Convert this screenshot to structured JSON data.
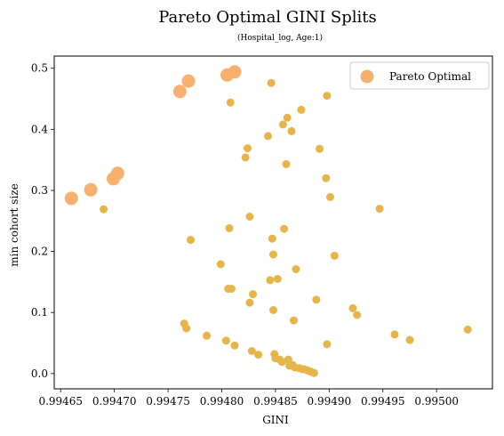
{
  "chart_data": {
    "type": "scatter",
    "title": "Pareto Optimal GINI Splits",
    "subtitle": "(Hospital_log, Age:1)",
    "xlabel": "GINI",
    "ylabel": "min cohort size",
    "xlim": [
      0.99645,
      0.99505
    ],
    "ylim": [
      -0.025,
      0.52
    ],
    "x_ticks": [
      0.99465,
      0.9947,
      0.99475,
      0.9948,
      0.99485,
      0.9949,
      0.99495,
      0.995
    ],
    "x_tick_labels": [
      "0.99465",
      "0.99470",
      "0.99475",
      "0.99480",
      "0.99485",
      "0.99490",
      "0.99495",
      "0.99500"
    ],
    "y_ticks": [
      0.0,
      0.1,
      0.2,
      0.3,
      0.4,
      0.5
    ],
    "y_tick_labels": [
      "0.0",
      "0.1",
      "0.2",
      "0.3",
      "0.4",
      "0.5"
    ],
    "grid": false,
    "legend_position": "top-right",
    "legend_label": "Pareto Optimal",
    "colors": {
      "pareto": "#F8B06E",
      "other": "#E6B54A"
    },
    "series": [
      {
        "name": "",
        "points": [
          [
            0.99469,
            0.269
          ],
          [
            0.994765,
            0.082
          ],
          [
            0.994767,
            0.074
          ],
          [
            0.994771,
            0.219
          ],
          [
            0.994786,
            0.062
          ],
          [
            0.994799,
            0.179
          ],
          [
            0.994804,
            0.054
          ],
          [
            0.994806,
            0.139
          ],
          [
            0.994807,
            0.238
          ],
          [
            0.994808,
            0.444
          ],
          [
            0.994809,
            0.139
          ],
          [
            0.994812,
            0.046
          ],
          [
            0.994822,
            0.354
          ],
          [
            0.994824,
            0.369
          ],
          [
            0.994826,
            0.257
          ],
          [
            0.994826,
            0.116
          ],
          [
            0.994828,
            0.037
          ],
          [
            0.994829,
            0.13
          ],
          [
            0.994834,
            0.031
          ],
          [
            0.994843,
            0.389
          ],
          [
            0.994845,
            0.153
          ],
          [
            0.994846,
            0.476
          ],
          [
            0.994847,
            0.221
          ],
          [
            0.994848,
            0.104
          ],
          [
            0.994848,
            0.195
          ],
          [
            0.994849,
            0.032
          ],
          [
            0.99485,
            0.025
          ],
          [
            0.994852,
            0.155
          ],
          [
            0.994854,
            0.023
          ],
          [
            0.994856,
            0.019
          ],
          [
            0.994857,
            0.408
          ],
          [
            0.994858,
            0.237
          ],
          [
            0.99486,
            0.343
          ],
          [
            0.994861,
            0.419
          ],
          [
            0.994862,
            0.023
          ],
          [
            0.994863,
            0.013
          ],
          [
            0.994865,
            0.397
          ],
          [
            0.994866,
            0.014
          ],
          [
            0.994867,
            0.087
          ],
          [
            0.994868,
            0.01
          ],
          [
            0.994869,
            0.171
          ],
          [
            0.994872,
            0.009
          ],
          [
            0.994874,
            0.432
          ],
          [
            0.994875,
            0.007
          ],
          [
            0.994877,
            0.007
          ],
          [
            0.99488,
            0.005
          ],
          [
            0.994883,
            0.003
          ],
          [
            0.994886,
            0.001
          ],
          [
            0.994888,
            0.121
          ],
          [
            0.994891,
            0.368
          ],
          [
            0.994897,
            0.32
          ],
          [
            0.994898,
            0.048
          ],
          [
            0.994898,
            0.455
          ],
          [
            0.994901,
            0.289
          ],
          [
            0.994905,
            0.193
          ],
          [
            0.994922,
            0.107
          ],
          [
            0.994926,
            0.096
          ],
          [
            0.994947,
            0.27
          ],
          [
            0.994961,
            0.064
          ],
          [
            0.994975,
            0.055
          ],
          [
            0.995029,
            0.072
          ]
        ]
      },
      {
        "name": "Pareto Optimal",
        "points": [
          [
            0.99466,
            0.287
          ],
          [
            0.994678,
            0.301
          ],
          [
            0.994699,
            0.319
          ],
          [
            0.994703,
            0.328
          ],
          [
            0.994761,
            0.462
          ],
          [
            0.994769,
            0.479
          ],
          [
            0.994805,
            0.489
          ],
          [
            0.994812,
            0.494
          ]
        ]
      }
    ]
  }
}
